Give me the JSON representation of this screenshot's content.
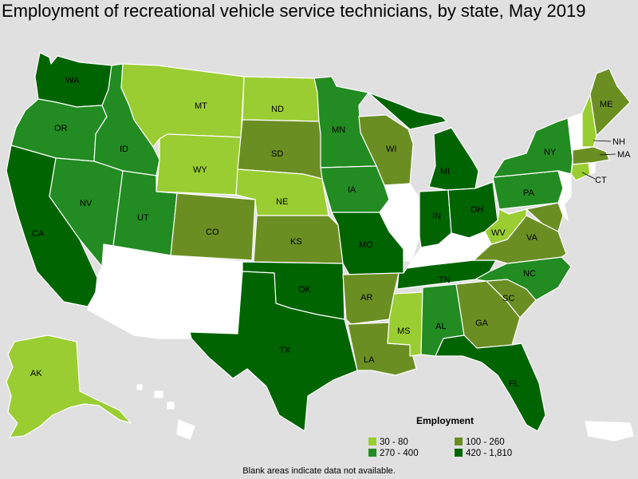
{
  "title": "Employment of recreational vehicle service technicians, by state, May 2019",
  "legend": {
    "title": "Employment",
    "items": [
      {
        "label": "30 - 80",
        "color": "#9acd32"
      },
      {
        "label": "100 - 260",
        "color": "#6b8e23"
      },
      {
        "label": "270 - 400",
        "color": "#228b22"
      },
      {
        "label": "420 - 1,810",
        "color": "#006400"
      }
    ]
  },
  "footnote": "Blank areas indicate data not available.",
  "colors": {
    "nodata": "#ffffff",
    "background": "#e0e0e0"
  },
  "states": {
    "WA": {
      "label": "WA",
      "class": "420 - 1,810"
    },
    "OR": {
      "label": "OR",
      "class": "270 - 400"
    },
    "CA": {
      "label": "CA",
      "class": "420 - 1,810"
    },
    "ID": {
      "label": "ID",
      "class": "270 - 400"
    },
    "NV": {
      "label": "NV",
      "class": "270 - 400"
    },
    "MT": {
      "label": "MT",
      "class": "30 - 80"
    },
    "WY": {
      "label": "WY",
      "class": "30 - 80"
    },
    "UT": {
      "label": "UT",
      "class": "270 - 400"
    },
    "AZ": {
      "label": "",
      "class": "nodata"
    },
    "NM": {
      "label": "",
      "class": "nodata"
    },
    "CO": {
      "label": "CO",
      "class": "100 - 260"
    },
    "ND": {
      "label": "ND",
      "class": "30 - 80"
    },
    "SD": {
      "label": "SD",
      "class": "100 - 260"
    },
    "NE": {
      "label": "NE",
      "class": "30 - 80"
    },
    "KS": {
      "label": "KS",
      "class": "100 - 260"
    },
    "OK": {
      "label": "OK",
      "class": "420 - 1,810"
    },
    "TX": {
      "label": "TX",
      "class": "420 - 1,810"
    },
    "MN": {
      "label": "MN",
      "class": "270 - 400"
    },
    "IA": {
      "label": "IA",
      "class": "270 - 400"
    },
    "MO": {
      "label": "MO",
      "class": "420 - 1,810"
    },
    "AR": {
      "label": "AR",
      "class": "100 - 260"
    },
    "LA": {
      "label": "LA",
      "class": "100 - 260"
    },
    "WI": {
      "label": "WI",
      "class": "100 - 260"
    },
    "IL": {
      "label": "",
      "class": "nodata"
    },
    "MI": {
      "label": "MI",
      "class": "420 - 1,810"
    },
    "IN": {
      "label": "IN",
      "class": "420 - 1,810"
    },
    "OH": {
      "label": "OH",
      "class": "420 - 1,810"
    },
    "KY": {
      "label": "",
      "class": "nodata"
    },
    "TN": {
      "label": "TN",
      "class": "420 - 1,810"
    },
    "MS": {
      "label": "MS",
      "class": "30 - 80"
    },
    "AL": {
      "label": "AL",
      "class": "270 - 400"
    },
    "GA": {
      "label": "GA",
      "class": "100 - 260"
    },
    "FL": {
      "label": "FL",
      "class": "420 - 1,810"
    },
    "SC": {
      "label": "SC",
      "class": "100 - 260"
    },
    "NC": {
      "label": "NC",
      "class": "270 - 400"
    },
    "VA": {
      "label": "VA",
      "class": "100 - 260"
    },
    "WV": {
      "label": "WV",
      "class": "30 - 80"
    },
    "PA": {
      "label": "PA",
      "class": "270 - 400"
    },
    "NY": {
      "label": "NY",
      "class": "270 - 400"
    },
    "VT": {
      "label": "",
      "class": "nodata"
    },
    "NH": {
      "label": "NH",
      "class": "30 - 80"
    },
    "ME": {
      "label": "ME",
      "class": "100 - 260"
    },
    "MA": {
      "label": "MA",
      "class": "100 - 260"
    },
    "CT": {
      "label": "CT",
      "class": "30 - 80"
    },
    "RI": {
      "label": "",
      "class": "nodata"
    },
    "NJ": {
      "label": "",
      "class": "nodata"
    },
    "DE": {
      "label": "",
      "class": "nodata"
    },
    "MD": {
      "label": "",
      "class": "100 - 260"
    },
    "AK": {
      "label": "AK",
      "class": "30 - 80"
    },
    "HI": {
      "label": "",
      "class": "nodata"
    },
    "PR": {
      "label": "",
      "class": "nodata"
    }
  }
}
